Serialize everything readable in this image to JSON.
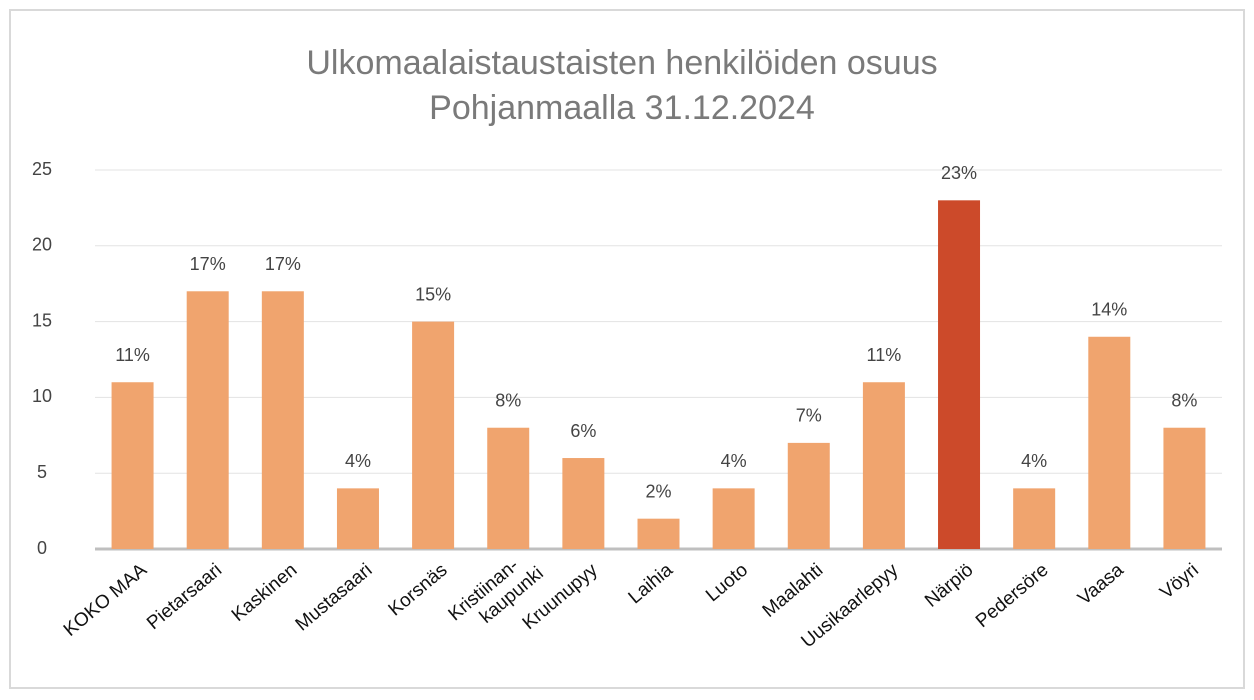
{
  "chart_data": {
    "type": "bar",
    "title": "Ulkomaalaistaustaisten henkilöiden osuus",
    "subtitle": "Pohjanmaalla 31.12.2024",
    "categories": [
      "KOKO MAA",
      "Pietarsaari",
      "Kaskinen",
      "Mustasaari",
      "Korsnäs",
      "Kristiinan-\nkaupunki",
      "Kruunupyy",
      "Laihia",
      "Luoto",
      "Maalahti",
      "Uusikaarlepyy",
      "Närpiö",
      "Pedersöre",
      "Vaasa",
      "Vöyri"
    ],
    "values": [
      11,
      17,
      17,
      4,
      15,
      8,
      6,
      2,
      4,
      7,
      11,
      23,
      4,
      14,
      8
    ],
    "value_labels": [
      "11%",
      "17%",
      "17%",
      "4%",
      "15%",
      "8%",
      "6%",
      "2%",
      "4%",
      "7%",
      "11%",
      "23%",
      "4%",
      "14%",
      "8%"
    ],
    "colors": [
      "#f0a46e",
      "#f0a46e",
      "#f0a46e",
      "#f0a46e",
      "#f0a46e",
      "#f0a46e",
      "#f0a46e",
      "#f0a46e",
      "#f0a46e",
      "#f0a46e",
      "#f0a46e",
      "#cc4a2a",
      "#f0a46e",
      "#f0a46e",
      "#f0a46e"
    ],
    "label_colors": [
      "#111",
      "#111",
      "#111",
      "#111",
      "#777",
      "#111",
      "#111",
      "#111",
      "#111",
      "#111",
      "#333",
      "#111",
      "#777",
      "#111",
      "#111"
    ],
    "ylim": [
      0,
      25
    ],
    "yticks": [
      0,
      5,
      10,
      15,
      20,
      25
    ],
    "grid": true
  }
}
